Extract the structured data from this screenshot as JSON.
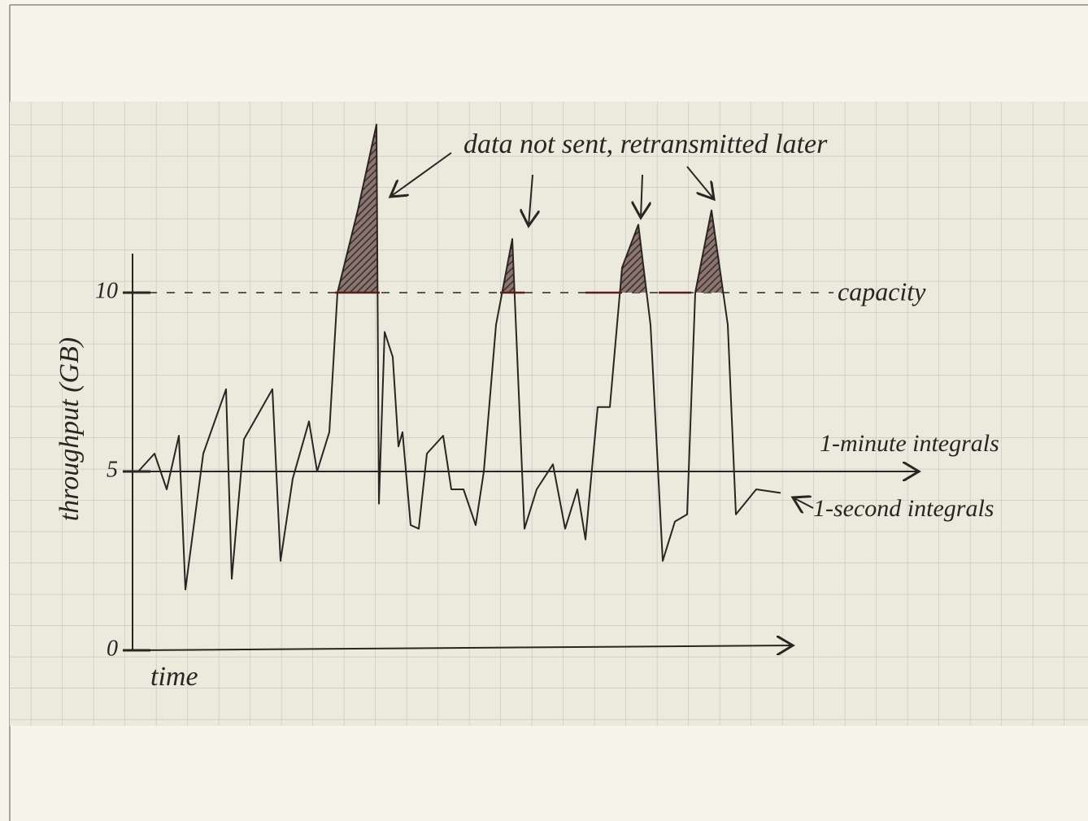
{
  "chart_data": {
    "type": "line",
    "annotations": [
      "data not sent, retransmitted later"
    ],
    "ylabel": "throughput (GB)",
    "xlabel": "time",
    "ylim": [
      0,
      15
    ],
    "yticks": [
      0,
      5,
      10
    ],
    "xlim": [
      0,
      812
    ],
    "capacity": {
      "label": "capacity",
      "value": 10
    },
    "series": [
      {
        "name": "1-second integrals",
        "color": "#2a2522",
        "x": [
          7,
          27,
          42,
          57,
          65,
          87,
          115,
          122,
          137,
          172,
          182,
          197,
          217,
          227,
          242,
          252,
          277,
          300,
          303,
          310,
          320,
          327,
          332,
          342,
          352,
          362,
          382,
          392,
          407,
          422,
          432,
          447,
          467,
          482,
          497,
          517,
          532,
          547,
          557,
          572,
          587,
          602,
          622,
          637,
          652,
          667,
          682,
          692,
          712,
          732,
          742,
          767,
          797
        ],
        "values": [
          5.0,
          5.5,
          4.5,
          6.0,
          1.7,
          5.5,
          7.3,
          2.0,
          5.9,
          7.3,
          2.5,
          4.8,
          6.4,
          5.0,
          6.1,
          10.0,
          12.3,
          14.7,
          4.1,
          8.9,
          8.2,
          5.7,
          6.1,
          3.5,
          3.4,
          5.5,
          6.0,
          4.5,
          4.5,
          3.5,
          5.0,
          9.1,
          11.5,
          3.4,
          4.5,
          5.2,
          3.4,
          4.5,
          3.1,
          6.8,
          6.8,
          10.7,
          11.9,
          9.1,
          2.5,
          3.6,
          3.8,
          10.0,
          12.3,
          9.1,
          3.8,
          4.5,
          4.4
        ]
      },
      {
        "name": "1-minute integrals",
        "color": "#2a2522",
        "x": [
          0,
          967
        ],
        "values": [
          5.0,
          5.0
        ]
      }
    ]
  }
}
